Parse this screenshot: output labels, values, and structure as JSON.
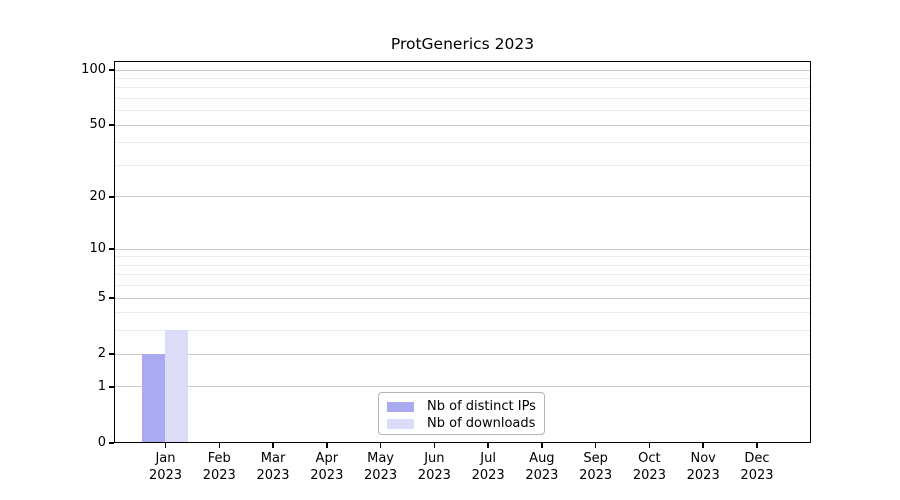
{
  "chart_data": {
    "type": "bar",
    "title": "ProtGenerics 2023",
    "xlabel": "",
    "ylabel": "",
    "categories": [
      "Jan",
      "Feb",
      "Mar",
      "Apr",
      "May",
      "Jun",
      "Jul",
      "Aug",
      "Sep",
      "Oct",
      "Nov",
      "Dec"
    ],
    "year_label": "2023",
    "series": [
      {
        "name": "Nb of distinct IPs",
        "color": "#aaaaf0",
        "values": [
          2,
          0,
          0,
          0,
          0,
          0,
          0,
          0,
          0,
          0,
          0,
          0
        ]
      },
      {
        "name": "Nb of downloads",
        "color": "#dcdcf8",
        "values": [
          3,
          0,
          0,
          0,
          0,
          0,
          0,
          0,
          0,
          0,
          0,
          0
        ]
      }
    ],
    "y_axis": {
      "scale": "log1p",
      "range": [
        0,
        100
      ],
      "ticks": [
        0,
        1,
        2,
        5,
        10,
        20,
        50,
        100
      ],
      "minor_gridlines": [
        3,
        4,
        6,
        7,
        8,
        9,
        30,
        40,
        60,
        70,
        80,
        90
      ]
    },
    "grid": true,
    "legend": {
      "position": "bottom-center"
    },
    "colors": {
      "axis": "#000000",
      "major_grid": "#c9c9c9",
      "minor_grid": "#ececec",
      "legend_border": "#b4b4b4",
      "background": "#ffffff"
    }
  }
}
